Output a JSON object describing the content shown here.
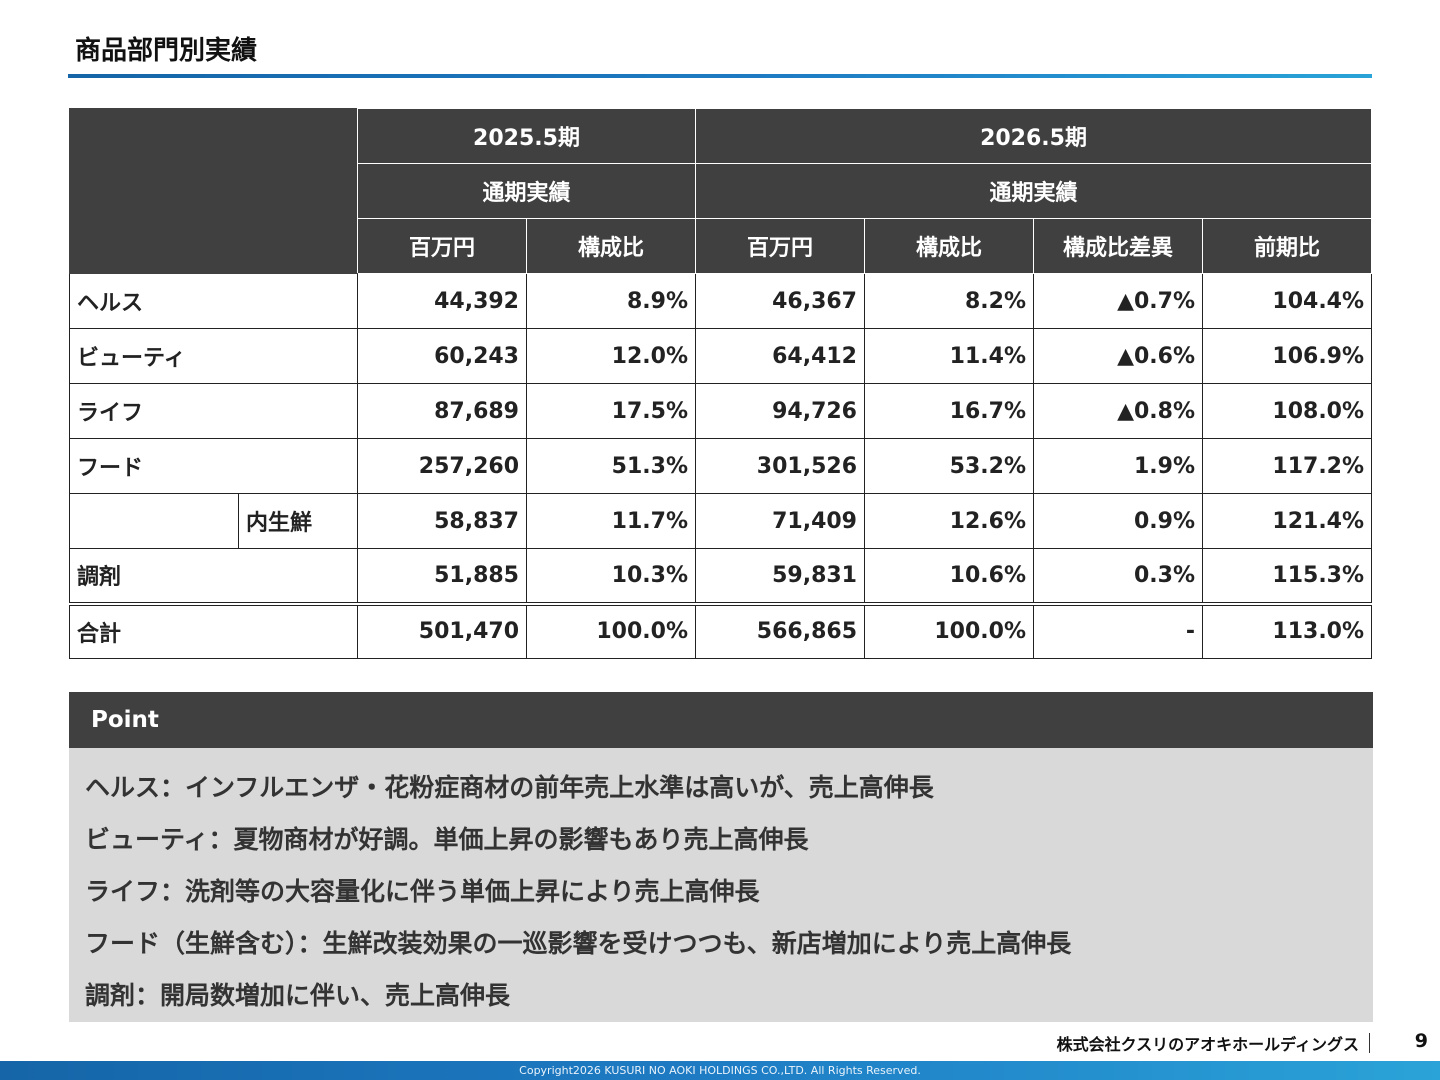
{
  "page": {
    "title": "商品部門別実績",
    "page_number": "9",
    "company_logo": "株式会社クスリのアオキホールディングス",
    "copyright": "Copyright2026 KUSURI NO AOKI HOLDINGS CO.,LTD. All Rights Reserved."
  },
  "table": {
    "period_prev": "2025.5期",
    "period_curr": "2026.5期",
    "sub_prev": "通期実績",
    "sub_curr": "通期実績",
    "col_headers": [
      "百万円",
      "構成比",
      "百万円",
      "構成比",
      "構成比差異",
      "前期比"
    ],
    "rows": [
      {
        "label": "ヘルス",
        "prev_amount": "44,392",
        "prev_ratio": "8.9%",
        "curr_amount": "46,367",
        "curr_ratio": "8.2%",
        "ratio_diff": "▲0.7%",
        "yoy": "104.4%"
      },
      {
        "label": "ビューティ",
        "prev_amount": "60,243",
        "prev_ratio": "12.0%",
        "curr_amount": "64,412",
        "curr_ratio": "11.4%",
        "ratio_diff": "▲0.6%",
        "yoy": "106.9%"
      },
      {
        "label": "ライフ",
        "prev_amount": "87,689",
        "prev_ratio": "17.5%",
        "curr_amount": "94,726",
        "curr_ratio": "16.7%",
        "ratio_diff": "▲0.8%",
        "yoy": "108.0%"
      },
      {
        "label": "フード",
        "prev_amount": "257,260",
        "prev_ratio": "51.3%",
        "curr_amount": "301,526",
        "curr_ratio": "53.2%",
        "ratio_diff": "1.9%",
        "yoy": "117.2%"
      },
      {
        "label": "内生鮮",
        "prev_amount": "58,837",
        "prev_ratio": "11.7%",
        "curr_amount": "71,409",
        "curr_ratio": "12.6%",
        "ratio_diff": "0.9%",
        "yoy": "121.4%"
      },
      {
        "label": "調剤",
        "prev_amount": "51,885",
        "prev_ratio": "10.3%",
        "curr_amount": "59,831",
        "curr_ratio": "10.6%",
        "ratio_diff": "0.3%",
        "yoy": "115.3%"
      }
    ],
    "total": {
      "label": "合計",
      "prev_amount": "501,470",
      "prev_ratio": "100.0%",
      "curr_amount": "566,865",
      "curr_ratio": "100.0%",
      "ratio_diff": "-",
      "yoy": "113.0%"
    }
  },
  "point": {
    "heading": "Point",
    "lines": [
      "ヘルス：インフルエンザ・花粉症商材の前年売上水準は高いが、売上高伸長",
      "ビューティ：夏物商材が好調。単価上昇の影響もあり売上高伸長",
      "ライフ：洗剤等の大容量化に伴う単価上昇により売上高伸長",
      "フード（生鮮含む）：生鮮改装効果の一巡影響を受けつつも、新店増加により売上高伸長",
      "調剤：開局数増加に伴い、売上高伸長"
    ]
  }
}
